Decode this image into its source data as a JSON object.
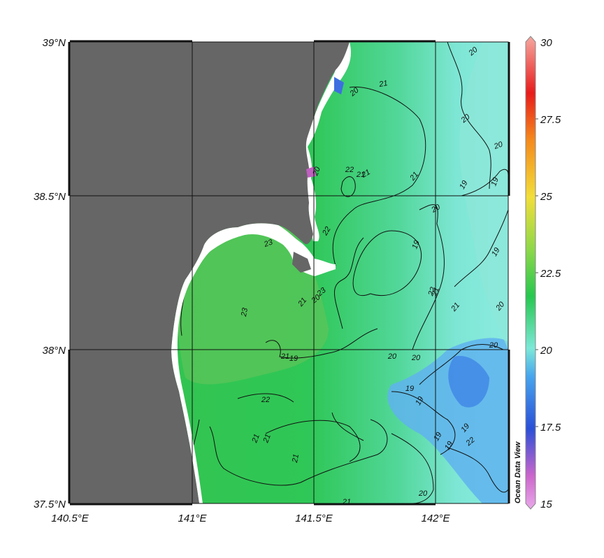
{
  "map": {
    "lat_labels": [
      "39°N",
      "38.5°N",
      "38°N",
      "37.5°N"
    ],
    "lon_labels": [
      "140.5°E",
      "141°E",
      "141.5°E",
      "142°E"
    ],
    "lat_range": [
      37.5,
      39.0
    ],
    "lon_range": [
      140.5,
      142.3
    ],
    "land_color": "#666666",
    "coast_color": "#ffffff",
    "grid": true
  },
  "contour_labels": [
    "20",
    "21",
    "20",
    "22",
    "21",
    "21",
    "20",
    "19",
    "19",
    "20",
    "23",
    "20",
    "21",
    "20",
    "22",
    "19",
    "23",
    "23",
    "21",
    "20",
    "19",
    "22",
    "21",
    "20",
    "21",
    "19",
    "20",
    "22",
    "19",
    "19",
    "19",
    "22",
    "19",
    "21",
    "21",
    "20",
    "21",
    "20",
    "19",
    "21",
    "21",
    "20"
  ],
  "colorbar": {
    "ticks": [
      "30",
      "27.5",
      "25",
      "22.5",
      "20",
      "17.5",
      "15"
    ],
    "range": [
      15,
      30
    ],
    "stops": [
      "#e9a8e9",
      "#cc66cc",
      "#2a4fd8",
      "#47a4ee",
      "#7de8d8",
      "#26c74f",
      "#8ed84a",
      "#f2de3a",
      "#f58a1c",
      "#e81b1b",
      "#f6a8a0"
    ]
  },
  "watermark": "Ocean Data View"
}
